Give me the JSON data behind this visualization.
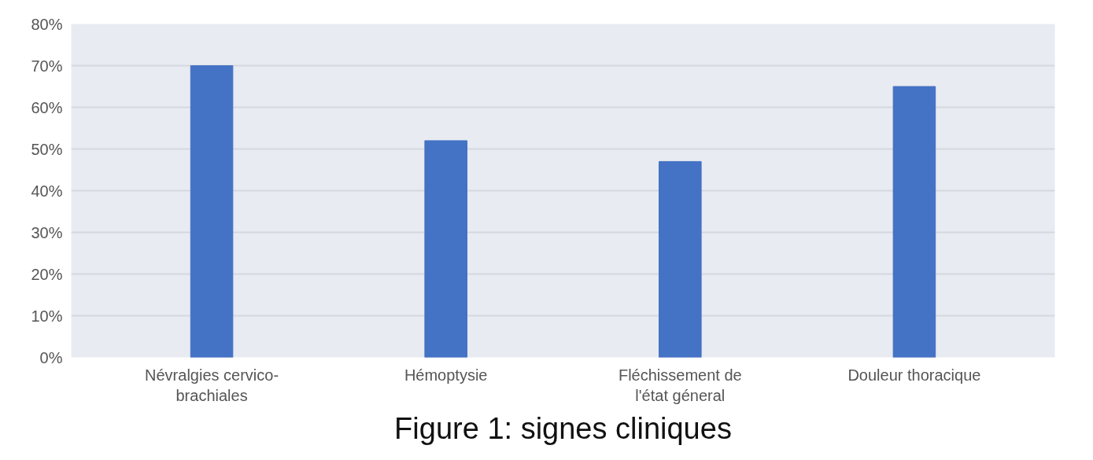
{
  "chart_data": {
    "type": "bar",
    "title": "Figure 1: signes cliniques",
    "categories": [
      "Névralgies cervico-\nbrachiales",
      "Hémoptysie",
      "Fléchissement de\nl'état géneral",
      "Douleur thoracique"
    ],
    "values": [
      70,
      52,
      47,
      65
    ],
    "color": "#4472c4",
    "ylim": [
      0,
      80
    ],
    "yticks": [
      {
        "value": 0,
        "label": "0%"
      },
      {
        "value": 10,
        "label": "10%"
      },
      {
        "value": 20,
        "label": "20%"
      },
      {
        "value": 30,
        "label": "30%"
      },
      {
        "value": 40,
        "label": "40%"
      },
      {
        "value": 50,
        "label": "50%"
      },
      {
        "value": 60,
        "label": "60%"
      },
      {
        "value": 70,
        "label": "70%"
      },
      {
        "value": 80,
        "label": "80%"
      }
    ],
    "grid": "y"
  }
}
